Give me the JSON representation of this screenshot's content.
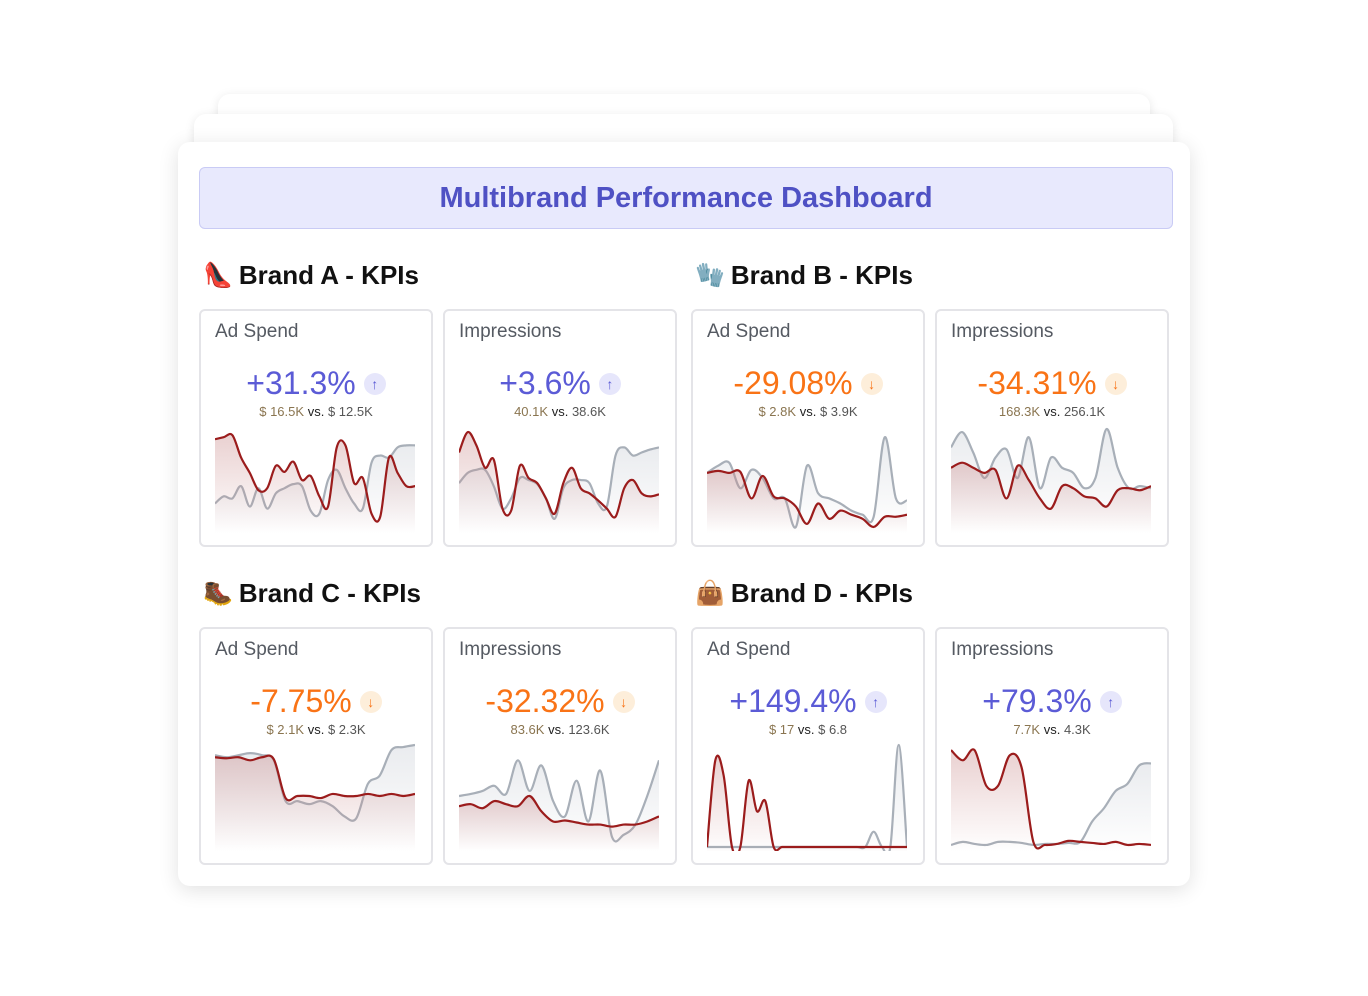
{
  "title": "Multibrand Performance Dashboard",
  "colors": {
    "up": "#5b5bd6",
    "up_bg": "#e6e6fb",
    "down": "#f97316",
    "down_bg": "#fdeeda",
    "current_line": "#9b1c1c",
    "previous_line": "#a8afb8"
  },
  "brands": [
    {
      "name": "Brand A - KPIs",
      "icon": "high-heel-icon",
      "emoji": "👠",
      "kpis": [
        {
          "label": "Ad Spend",
          "change": "+31.3%",
          "direction": "up",
          "current": "$ 16.5K",
          "vs": "vs.",
          "previous": "$ 12.5K",
          "current_series": [
            88,
            90,
            92,
            70,
            55,
            38,
            40,
            62,
            56,
            66,
            48,
            52,
            32,
            22,
            80,
            82,
            45,
            50,
            15,
            12,
            70,
            55,
            42,
            42
          ],
          "previous_series": [
            25,
            32,
            30,
            42,
            22,
            40,
            20,
            35,
            40,
            44,
            42,
            18,
            15,
            48,
            58,
            40,
            25,
            20,
            65,
            72,
            70,
            80,
            82,
            82
          ]
        },
        {
          "label": "Impressions",
          "change": "+3.6%",
          "direction": "up",
          "current": "40.1K",
          "vs": "vs.",
          "previous": "38.6K",
          "current_series": [
            75,
            95,
            82,
            60,
            68,
            20,
            18,
            62,
            50,
            45,
            30,
            15,
            45,
            60,
            40,
            35,
            28,
            20,
            12,
            40,
            48,
            35,
            32,
            34
          ],
          "previous_series": [
            45,
            55,
            58,
            58,
            42,
            20,
            30,
            50,
            48,
            44,
            30,
            10,
            40,
            48,
            48,
            45,
            25,
            22,
            72,
            80,
            72,
            75,
            78,
            80
          ]
        }
      ]
    },
    {
      "name": "Brand B - KPIs",
      "icon": "glove-icon",
      "emoji": "🧤",
      "kpis": [
        {
          "label": "Ad Spend",
          "change": "-29.08%",
          "direction": "down",
          "current": "$ 2.8K",
          "vs": "vs.",
          "previous": "$ 3.9K",
          "current_series": [
            55,
            57,
            55,
            56,
            30,
            52,
            32,
            30,
            22,
            5,
            25,
            10,
            18,
            14,
            10,
            2,
            12,
            12,
            14
          ],
          "previous_series": [
            55,
            62,
            65,
            40,
            58,
            50,
            30,
            30,
            2,
            62,
            35,
            30,
            25,
            18,
            14,
            12,
            90,
            30,
            28
          ]
        },
        {
          "label": "Impressions",
          "change": "-34.31%",
          "direction": "down",
          "current": "168.3K",
          "vs": "vs.",
          "previous": "256.1K",
          "current_series": [
            60,
            65,
            60,
            55,
            58,
            30,
            62,
            48,
            30,
            20,
            42,
            40,
            32,
            30,
            22,
            38,
            40,
            38,
            42
          ],
          "previous_series": [
            80,
            95,
            75,
            50,
            70,
            78,
            50,
            90,
            40,
            70,
            60,
            55,
            40,
            50,
            98,
            60,
            40,
            42,
            40
          ]
        }
      ]
    },
    {
      "name": "Brand C - KPIs",
      "icon": "hiking-boot-icon",
      "emoji": "🥾",
      "kpis": [
        {
          "label": "Ad Spend",
          "change": "-7.75%",
          "direction": "down",
          "current": "$ 2.1K",
          "vs": "vs.",
          "previous": "$ 2.3K",
          "current_series": [
            88,
            87,
            88,
            85,
            88,
            86,
            48,
            50,
            50,
            48,
            52,
            50,
            50,
            52,
            50,
            52,
            50,
            52
          ],
          "previous_series": [
            90,
            88,
            90,
            92,
            90,
            85,
            45,
            45,
            42,
            45,
            40,
            30,
            28,
            62,
            70,
            95,
            98,
            100
          ]
        },
        {
          "label": "Impressions",
          "change": "-32.32%",
          "direction": "down",
          "current": "83.6K",
          "vs": "vs.",
          "previous": "123.6K",
          "current_series": [
            40,
            42,
            38,
            45,
            42,
            40,
            50,
            35,
            25,
            26,
            24,
            22,
            22,
            20,
            22,
            22,
            25,
            30
          ],
          "previous_series": [
            50,
            52,
            55,
            60,
            52,
            85,
            55,
            80,
            45,
            30,
            65,
            25,
            75,
            10,
            12,
            22,
            50,
            85
          ]
        }
      ]
    },
    {
      "name": "Brand D - KPIs",
      "icon": "handbag-icon",
      "emoji": "👜",
      "kpis": [
        {
          "label": "Ad Spend",
          "change": "+149.4%",
          "direction": "up",
          "current": "$ 17",
          "vs": "vs.",
          "previous": "$ 6.8",
          "current_series": [
            0,
            85,
            70,
            0,
            0,
            65,
            35,
            45,
            0,
            0,
            0,
            0,
            0,
            0,
            0,
            0,
            0,
            0,
            0,
            0,
            0,
            0,
            0,
            0,
            0
          ],
          "previous_series": [
            0,
            0,
            0,
            0,
            0,
            0,
            0,
            0,
            0,
            0,
            0,
            0,
            0,
            0,
            0,
            0,
            0,
            0,
            0,
            0,
            15,
            0,
            0,
            100,
            0
          ]
        },
        {
          "label": "Impressions",
          "change": "+79.3%",
          "direction": "up",
          "current": "7.7K",
          "vs": "vs.",
          "previous": "4.3K",
          "current_series": [
            95,
            85,
            95,
            60,
            60,
            90,
            78,
            5,
            2,
            3,
            6,
            5,
            4,
            3,
            5,
            2,
            3,
            2
          ],
          "previous_series": [
            2,
            5,
            3,
            2,
            5,
            5,
            4,
            2,
            3,
            3,
            4,
            5,
            25,
            38,
            55,
            62,
            80,
            82
          ]
        }
      ]
    }
  ]
}
